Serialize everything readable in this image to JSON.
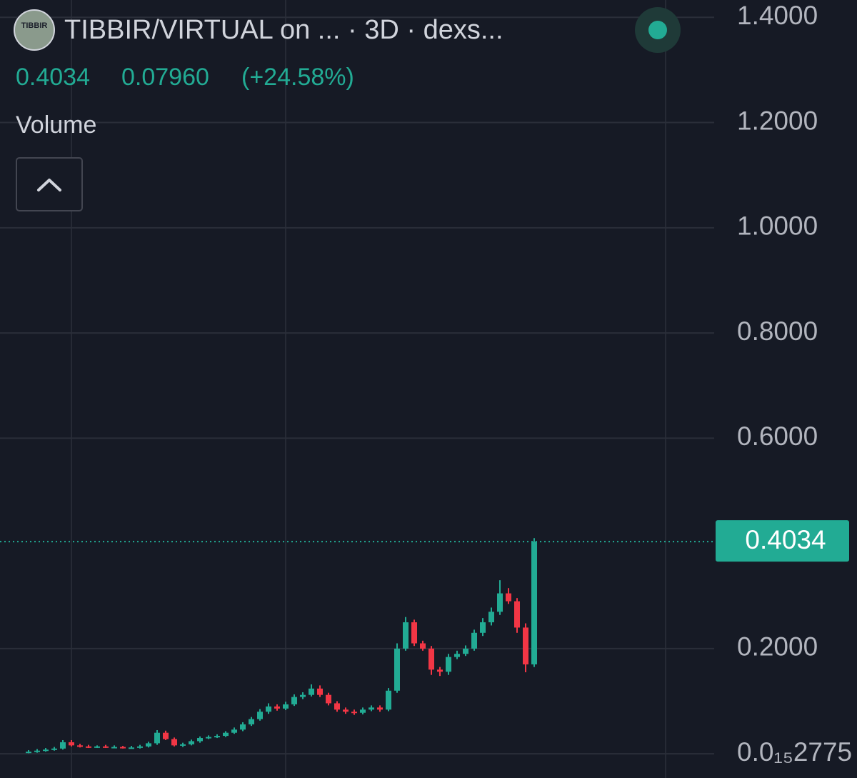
{
  "chart_data": {
    "type": "candlestick",
    "logo_text": "TIBBIR",
    "title": "TIBBIR/VIRTUAL on ...  · 3D · dexs...",
    "last_price": 0.4034,
    "change": {
      "value": 0.0796,
      "label": "0.07960"
    },
    "change_pct": "(+24.58%)",
    "indicator": "Volume",
    "up_color": "#22ab94",
    "down_color": "#f23645",
    "grid": true,
    "ylim": [
      -0.046,
      1.433
    ],
    "yticks": [
      {
        "value": 2.775e-16,
        "label": "0.0₁₅2775"
      },
      {
        "value": 0.2,
        "label": "0.2000"
      },
      {
        "value": 0.6,
        "label": "0.6000"
      },
      {
        "value": 0.8,
        "label": "0.8000"
      },
      {
        "value": 1.0,
        "label": "1.0000"
      },
      {
        "value": 1.2,
        "label": "1.2000"
      },
      {
        "value": 1.4,
        "label": "1.4000"
      }
    ],
    "open": [
      0.003,
      0.004,
      0.006,
      0.008,
      0.01,
      0.022,
      0.016,
      0.014,
      0.013,
      0.014,
      0.013,
      0.013,
      0.012,
      0.012,
      0.014,
      0.02,
      0.04,
      0.028,
      0.016,
      0.018,
      0.024,
      0.03,
      0.032,
      0.034,
      0.04,
      0.046,
      0.056,
      0.066,
      0.08,
      0.09,
      0.086,
      0.094,
      0.108,
      0.112,
      0.124,
      0.112,
      0.096,
      0.084,
      0.08,
      0.078,
      0.084,
      0.088,
      0.084,
      0.12,
      0.2,
      0.25,
      0.21,
      0.2,
      0.16,
      0.156,
      0.184,
      0.19,
      0.2,
      0.23,
      0.25,
      0.27,
      0.305,
      0.29,
      0.24,
      0.17
    ],
    "high": [
      0.007,
      0.009,
      0.011,
      0.013,
      0.026,
      0.026,
      0.019,
      0.017,
      0.016,
      0.017,
      0.016,
      0.015,
      0.015,
      0.017,
      0.023,
      0.045,
      0.044,
      0.031,
      0.021,
      0.027,
      0.033,
      0.035,
      0.037,
      0.043,
      0.05,
      0.06,
      0.07,
      0.085,
      0.096,
      0.094,
      0.099,
      0.113,
      0.117,
      0.132,
      0.13,
      0.116,
      0.1,
      0.088,
      0.084,
      0.088,
      0.092,
      0.092,
      0.125,
      0.21,
      0.26,
      0.255,
      0.215,
      0.205,
      0.165,
      0.19,
      0.196,
      0.206,
      0.236,
      0.258,
      0.278,
      0.33,
      0.315,
      0.296,
      0.248,
      0.41
    ],
    "low": [
      0.001,
      0.002,
      0.004,
      0.006,
      0.008,
      0.014,
      0.012,
      0.011,
      0.011,
      0.011,
      0.011,
      0.01,
      0.01,
      0.01,
      0.012,
      0.017,
      0.026,
      0.014,
      0.013,
      0.016,
      0.021,
      0.028,
      0.03,
      0.032,
      0.038,
      0.043,
      0.053,
      0.063,
      0.076,
      0.082,
      0.083,
      0.091,
      0.104,
      0.109,
      0.108,
      0.092,
      0.08,
      0.076,
      0.074,
      0.075,
      0.081,
      0.08,
      0.081,
      0.116,
      0.196,
      0.205,
      0.196,
      0.15,
      0.148,
      0.15,
      0.18,
      0.186,
      0.196,
      0.224,
      0.244,
      0.264,
      0.285,
      0.23,
      0.155,
      0.165
    ],
    "close": [
      0.004,
      0.006,
      0.008,
      0.01,
      0.022,
      0.016,
      0.014,
      0.013,
      0.014,
      0.013,
      0.013,
      0.012,
      0.012,
      0.014,
      0.02,
      0.04,
      0.028,
      0.016,
      0.018,
      0.024,
      0.03,
      0.032,
      0.034,
      0.04,
      0.046,
      0.056,
      0.066,
      0.08,
      0.09,
      0.086,
      0.094,
      0.108,
      0.112,
      0.124,
      0.112,
      0.096,
      0.084,
      0.08,
      0.078,
      0.084,
      0.088,
      0.084,
      0.12,
      0.2,
      0.25,
      0.21,
      0.2,
      0.16,
      0.156,
      0.184,
      0.19,
      0.2,
      0.23,
      0.25,
      0.27,
      0.305,
      0.29,
      0.24,
      0.17,
      0.4034
    ]
  }
}
